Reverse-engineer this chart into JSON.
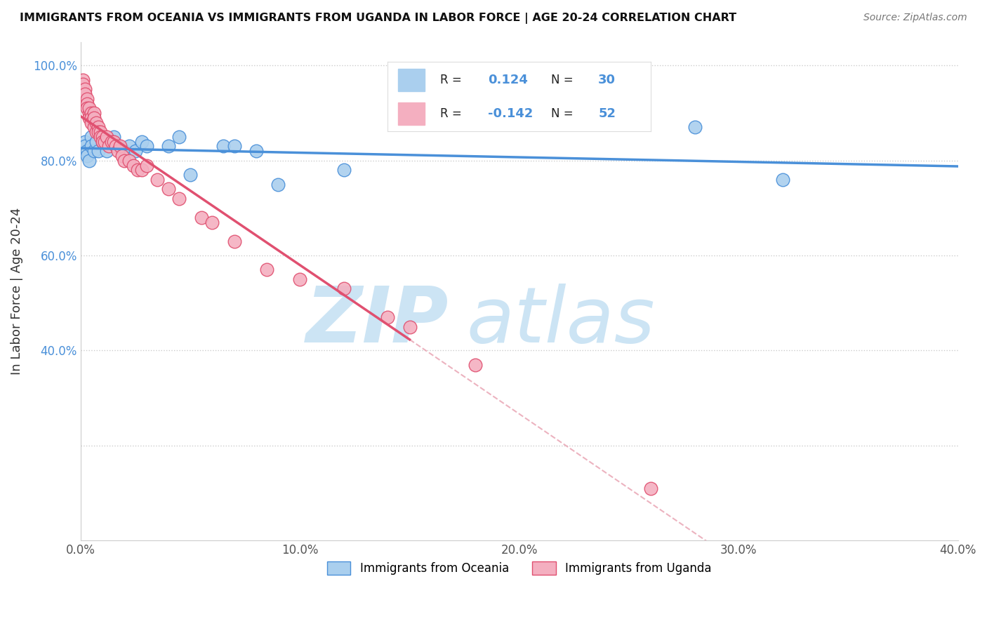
{
  "title": "IMMIGRANTS FROM OCEANIA VS IMMIGRANTS FROM UGANDA IN LABOR FORCE | AGE 20-24 CORRELATION CHART",
  "source": "Source: ZipAtlas.com",
  "ylabel": "In Labor Force | Age 20-24",
  "xlim": [
    0.0,
    0.4
  ],
  "ylim": [
    0.0,
    1.05
  ],
  "yticks": [
    0.2,
    0.4,
    0.6,
    0.8,
    1.0
  ],
  "ytick_labels": [
    "",
    "40.0%",
    "60.0%",
    "80.0%",
    "100.0%"
  ],
  "xticks": [
    0.0,
    0.1,
    0.2,
    0.3,
    0.4
  ],
  "xtick_labels": [
    "0.0%",
    "10.0%",
    "20.0%",
    "30.0%",
    "40.0%"
  ],
  "color_oceania": "#aacfee",
  "color_uganda": "#f4afc0",
  "line_color_oceania": "#4A90D9",
  "line_color_uganda": "#E05070",
  "watermark_color": "#cce4f4",
  "oceania_x": [
    0.001,
    0.002,
    0.002,
    0.003,
    0.003,
    0.004,
    0.005,
    0.005,
    0.006,
    0.007,
    0.008,
    0.01,
    0.012,
    0.015,
    0.017,
    0.02,
    0.022,
    0.025,
    0.028,
    0.03,
    0.04,
    0.045,
    0.05,
    0.065,
    0.07,
    0.08,
    0.09,
    0.12,
    0.28,
    0.32
  ],
  "oceania_y": [
    0.82,
    0.84,
    0.83,
    0.82,
    0.81,
    0.8,
    0.85,
    0.83,
    0.82,
    0.84,
    0.82,
    0.84,
    0.82,
    0.85,
    0.83,
    0.82,
    0.83,
    0.82,
    0.84,
    0.83,
    0.83,
    0.85,
    0.77,
    0.83,
    0.83,
    0.82,
    0.75,
    0.78,
    0.87,
    0.76
  ],
  "uganda_x": [
    0.001,
    0.001,
    0.002,
    0.002,
    0.003,
    0.003,
    0.003,
    0.004,
    0.004,
    0.004,
    0.005,
    0.005,
    0.005,
    0.006,
    0.006,
    0.006,
    0.007,
    0.007,
    0.008,
    0.008,
    0.009,
    0.009,
    0.01,
    0.01,
    0.011,
    0.012,
    0.013,
    0.014,
    0.015,
    0.016,
    0.017,
    0.018,
    0.019,
    0.02,
    0.022,
    0.024,
    0.026,
    0.028,
    0.03,
    0.035,
    0.04,
    0.045,
    0.055,
    0.06,
    0.07,
    0.085,
    0.1,
    0.12,
    0.14,
    0.15,
    0.18,
    0.26
  ],
  "uganda_y": [
    0.97,
    0.96,
    0.95,
    0.94,
    0.93,
    0.92,
    0.91,
    0.9,
    0.89,
    0.91,
    0.9,
    0.89,
    0.88,
    0.9,
    0.89,
    0.87,
    0.88,
    0.86,
    0.87,
    0.86,
    0.86,
    0.85,
    0.85,
    0.84,
    0.84,
    0.85,
    0.83,
    0.84,
    0.84,
    0.83,
    0.82,
    0.83,
    0.81,
    0.8,
    0.8,
    0.79,
    0.78,
    0.78,
    0.79,
    0.76,
    0.74,
    0.72,
    0.68,
    0.67,
    0.63,
    0.57,
    0.55,
    0.53,
    0.47,
    0.45,
    0.37,
    0.11
  ]
}
